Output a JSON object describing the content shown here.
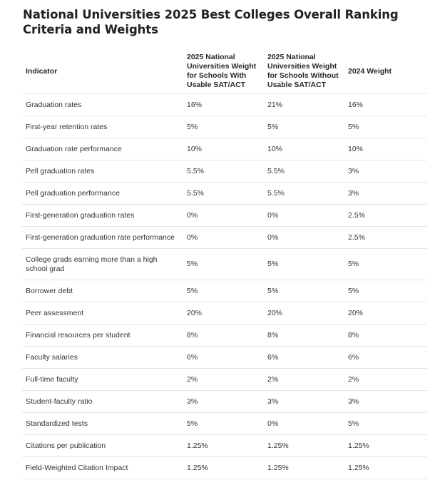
{
  "title": "National Universities 2025 Best Colleges Overall Ranking Criteria and Weights",
  "table": {
    "headers": [
      "Indicator",
      "2025 National Universities Weight for Schools With Usable SAT/ACT",
      "2025 National Universities Weight for Schools Without Usable SAT/ACT",
      "2024 Weight"
    ],
    "rows": [
      [
        "Graduation rates",
        "16%",
        "21%",
        "16%"
      ],
      [
        "First-year retention rates",
        "5%",
        "5%",
        "5%"
      ],
      [
        "Graduation rate performance",
        "10%",
        "10%",
        "10%"
      ],
      [
        "Pell graduation rates",
        "5.5%",
        "5.5%",
        "3%"
      ],
      [
        "Pell graduation performance",
        "5.5%",
        "5.5%",
        "3%"
      ],
      [
        "First-generation graduation rates",
        "0%",
        "0%",
        "2.5%"
      ],
      [
        "First-generation graduation rate performance",
        "0%",
        "0%",
        "2.5%"
      ],
      [
        "College grads earning more than a high school grad",
        "5%",
        "5%",
        "5%"
      ],
      [
        "Borrower debt",
        "5%",
        "5%",
        "5%"
      ],
      [
        "Peer assessment",
        "20%",
        "20%",
        "20%"
      ],
      [
        "Financial resources per student",
        "8%",
        "8%",
        "8%"
      ],
      [
        "Faculty salaries",
        "6%",
        "6%",
        "6%"
      ],
      [
        "Full-time faculty",
        "2%",
        "2%",
        "2%"
      ],
      [
        "Student-faculty ratio",
        "3%",
        "3%",
        "3%"
      ],
      [
        "Standardized tests",
        "5%",
        "0%",
        "5%"
      ],
      [
        "Citations per publication",
        "1.25%",
        "1.25%",
        "1.25%"
      ],
      [
        "Field-Weighted Citation Impact",
        "1.25%",
        "1.25%",
        "1.25%"
      ]
    ]
  }
}
